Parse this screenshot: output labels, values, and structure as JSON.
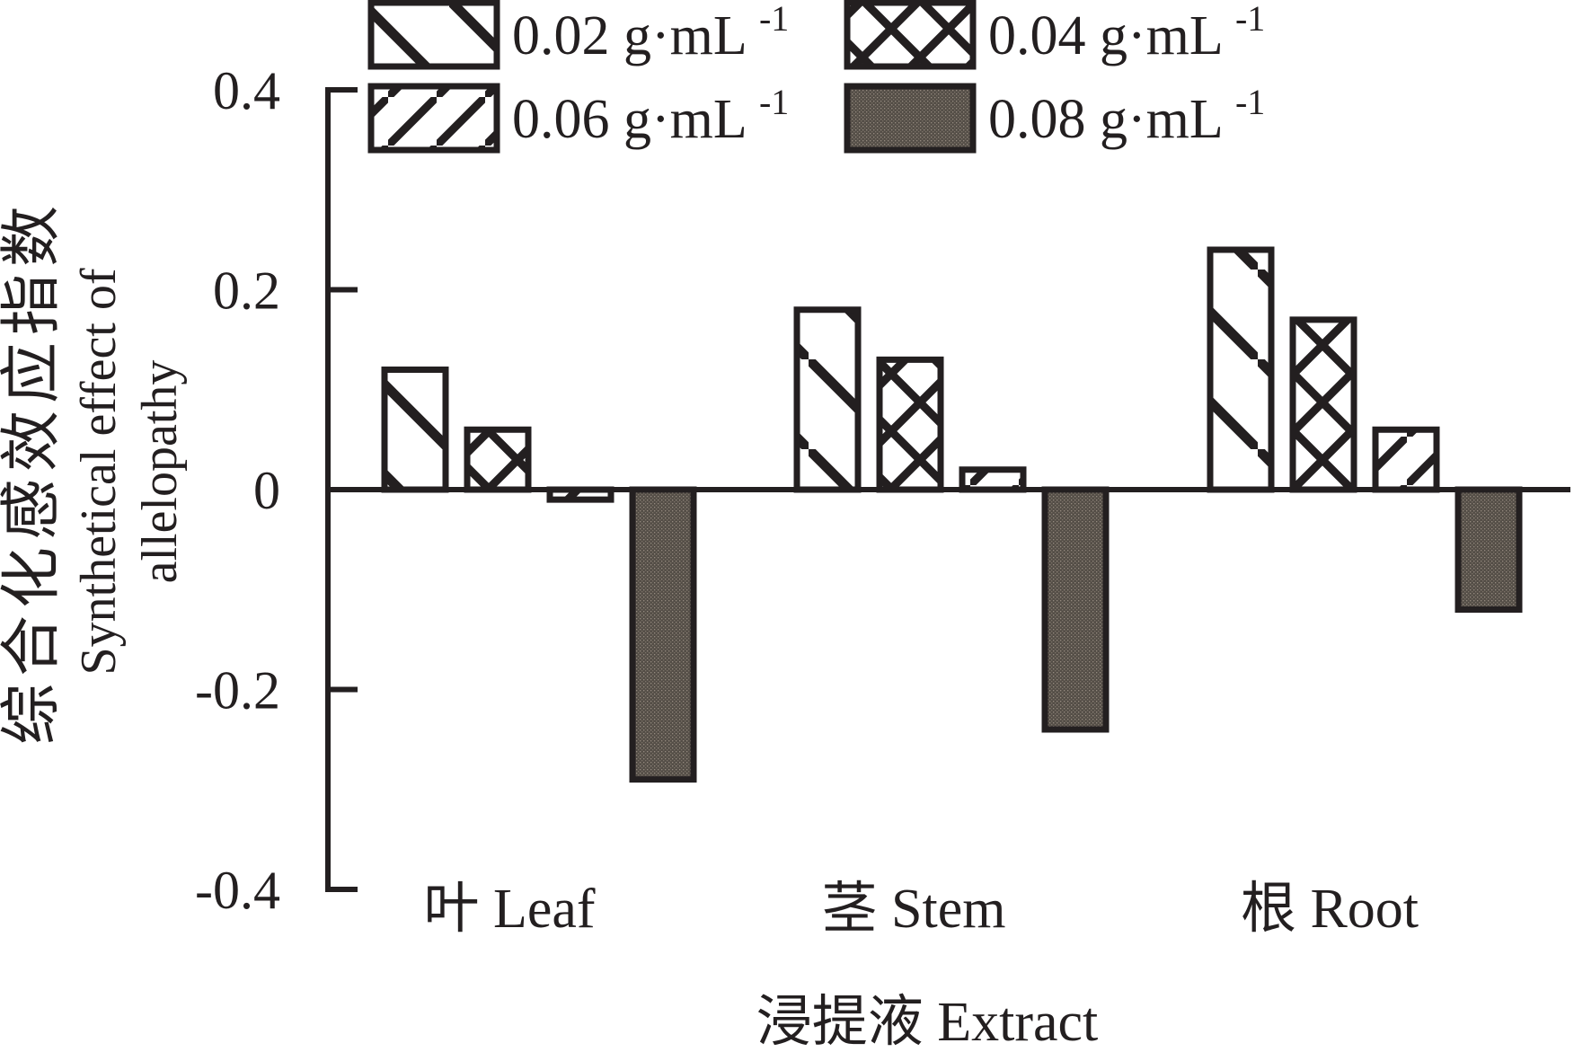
{
  "chart_data": {
    "type": "bar",
    "title": "",
    "xlabel": "浸提液 Extract",
    "ylabel_lines": [
      "综合化感效应指数",
      "Synthetical effect of",
      "allelopathy"
    ],
    "ylabel_full": "综合化感效应指数 Synthetical effect of allelopathy",
    "categories": [
      "叶 Leaf",
      "茎 Stem",
      "根 Root"
    ],
    "series": [
      {
        "name": "0.02 g·mL⁻¹",
        "label": "0.02 g·mL",
        "exponent": "-1",
        "pattern": "backslash-hatch",
        "values": [
          0.12,
          0.18,
          0.24
        ]
      },
      {
        "name": "0.04 g·mL⁻¹",
        "label": "0.04 g·mL",
        "exponent": "-1",
        "pattern": "crosshatch",
        "values": [
          0.06,
          0.13,
          0.17
        ]
      },
      {
        "name": "0.06 g·mL⁻¹",
        "label": "0.06 g·mL",
        "exponent": "-1",
        "pattern": "slash-hatch",
        "values": [
          -0.01,
          0.02,
          0.06
        ]
      },
      {
        "name": "0.08 g·mL⁻¹",
        "label": "0.08 g·mL",
        "exponent": "-1",
        "pattern": "dark-solid",
        "values": [
          -0.29,
          -0.24,
          -0.12
        ]
      }
    ],
    "yticks": [
      0.4,
      0.2,
      0,
      -0.2,
      -0.4
    ],
    "ytick_labels": [
      "0.4",
      "0.2",
      "0",
      "-0.2",
      "-0.4"
    ],
    "ylim": [
      -0.4,
      0.4
    ],
    "grid": false,
    "legend_position": "top-inside",
    "colors": {
      "line": "#231f20",
      "bar_fill_light": "#ffffff",
      "bar_fill_dark": "#544e47",
      "dark_speckle": "#958b80",
      "background": "#ffffff"
    }
  }
}
